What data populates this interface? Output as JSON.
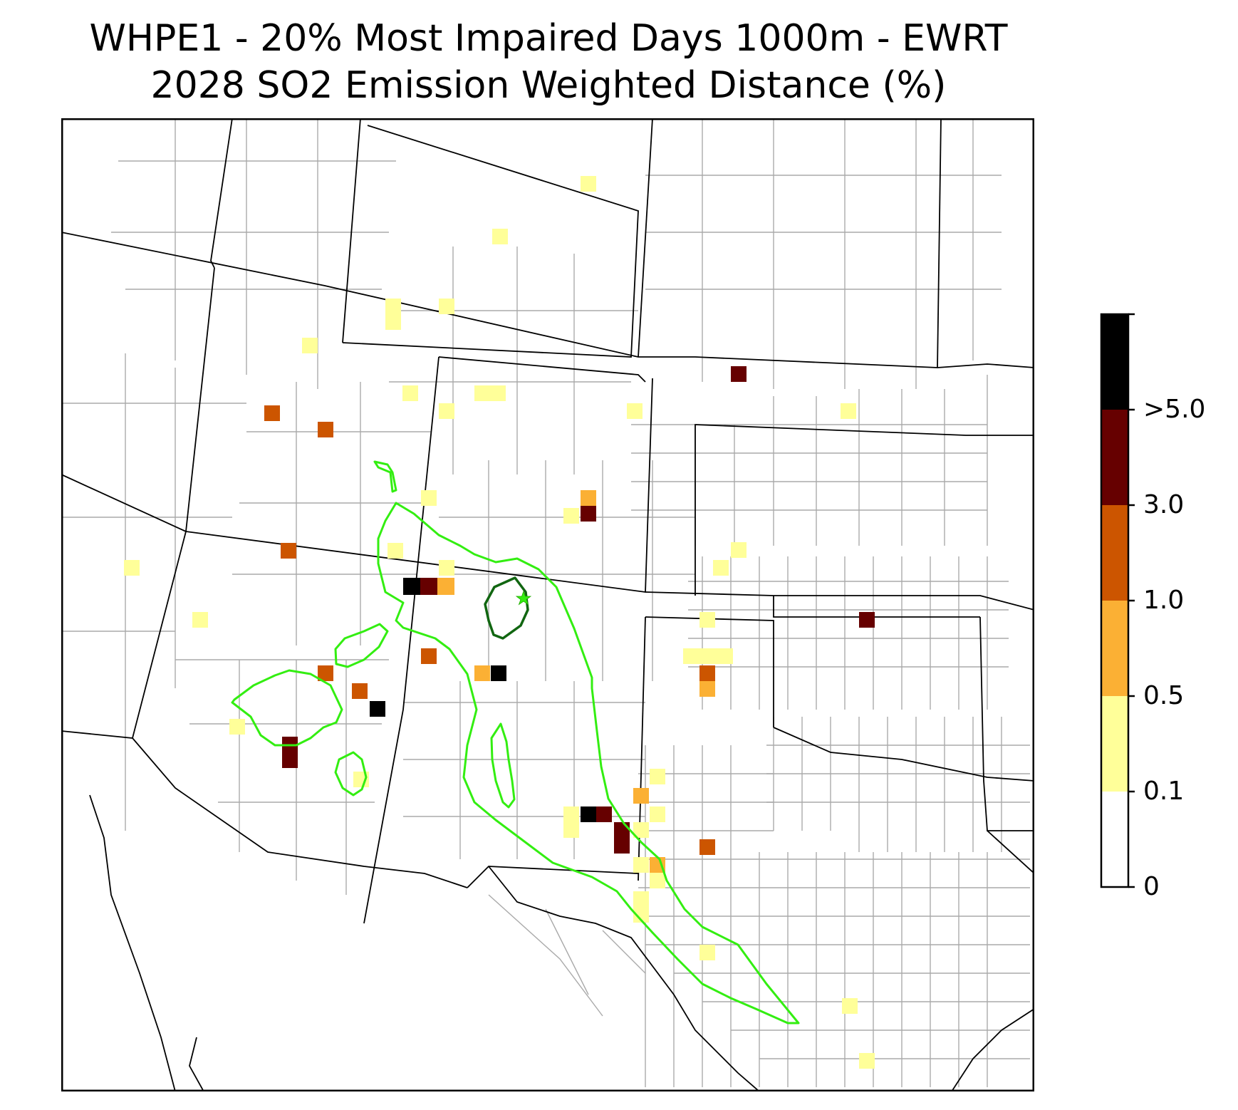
{
  "title_line1": "WHPE1 - 20% Most Impaired Days 1000m - EWRT",
  "title_line2": "2028 SO2 Emission Weighted Distance (%)",
  "colorbar": {
    "labels": [
      ">5.0",
      "3.0",
      "1.0",
      "0.5",
      "0.1",
      "0"
    ],
    "bins": [
      {
        "range": "0-0.1",
        "color": "#ffffff"
      },
      {
        "range": "0.1-0.5",
        "color": "#ffff99"
      },
      {
        "range": "0.5-1.0",
        "color": "#fbb034"
      },
      {
        "range": "1.0-3.0",
        "color": "#cc5500"
      },
      {
        "range": "3.0-5.0",
        "color": "#660000"
      },
      {
        "range": ">5.0",
        "color": "#000000"
      }
    ]
  },
  "colors": {
    "state_borders": "#000000",
    "county_borders": "#aaaaaa",
    "contour_outer": "#33ee11",
    "contour_inner": "#116611",
    "site_marker": "#33ee11"
  },
  "map_features": [
    "state-borders",
    "county-borders",
    "emission-cells",
    "outer-contour",
    "inner-contour",
    "site-star"
  ]
}
